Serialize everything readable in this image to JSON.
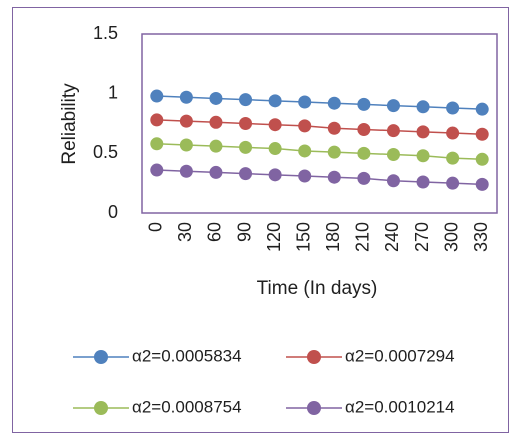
{
  "chart_data": {
    "type": "line",
    "ylabel": "Reliability",
    "xlabel": "Time (In days)",
    "categories": [
      "0",
      "30",
      "60",
      "90",
      "120",
      "150",
      "180",
      "210",
      "240",
      "270",
      "300",
      "330"
    ],
    "yticks": [
      "0",
      "0.5",
      "1",
      "1.5"
    ],
    "ylim": [
      0,
      1.5
    ],
    "grid": false,
    "legend_position": "bottom",
    "series": [
      {
        "name": "α2=0.0005834",
        "color": "#4f81bd",
        "values": [
          0.98,
          0.97,
          0.96,
          0.95,
          0.94,
          0.93,
          0.92,
          0.91,
          0.9,
          0.89,
          0.88,
          0.87
        ]
      },
      {
        "name": "α2=0.0007294",
        "color": "#c0504d",
        "values": [
          0.78,
          0.77,
          0.76,
          0.75,
          0.74,
          0.73,
          0.71,
          0.7,
          0.69,
          0.68,
          0.67,
          0.66
        ]
      },
      {
        "name": "α2=0.0008754",
        "color": "#9bbb59",
        "values": [
          0.58,
          0.57,
          0.56,
          0.55,
          0.54,
          0.52,
          0.51,
          0.5,
          0.49,
          0.48,
          0.46,
          0.45
        ]
      },
      {
        "name": "α2=0.0010214",
        "color": "#8064a2",
        "values": [
          0.36,
          0.35,
          0.34,
          0.33,
          0.32,
          0.31,
          0.3,
          0.29,
          0.27,
          0.26,
          0.25,
          0.24
        ]
      }
    ]
  }
}
